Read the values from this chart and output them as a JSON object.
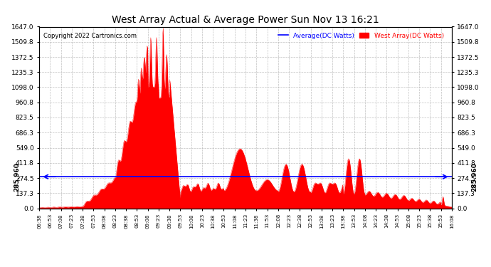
{
  "title": "West Array Actual & Average Power Sun Nov 13 16:21",
  "copyright": "Copyright 2022 Cartronics.com",
  "legend_avg": "Average(DC Watts)",
  "legend_west": "West Array(DC Watts)",
  "avg_value": 285.96,
  "y_max": 1647.0,
  "y_ticks": [
    0.0,
    137.3,
    274.5,
    411.8,
    549.0,
    686.3,
    823.5,
    960.8,
    1098.0,
    1235.3,
    1372.5,
    1509.8,
    1647.0
  ],
  "avg_label": "285.960",
  "background_color": "#ffffff",
  "fill_color": "#ff0000",
  "avg_line_color": "#0000ff",
  "grid_color": "#b0b0b0",
  "title_color": "#000000",
  "x_labels": [
    "06:38",
    "06:53",
    "07:08",
    "07:23",
    "07:38",
    "07:53",
    "08:08",
    "08:23",
    "08:38",
    "08:53",
    "09:08",
    "09:23",
    "09:38",
    "09:53",
    "10:08",
    "10:23",
    "10:38",
    "10:53",
    "11:08",
    "11:23",
    "11:38",
    "11:53",
    "12:08",
    "12:23",
    "12:38",
    "12:53",
    "13:08",
    "13:23",
    "13:38",
    "13:53",
    "14:08",
    "14:23",
    "14:38",
    "14:53",
    "15:08",
    "15:23",
    "15:38",
    "15:53",
    "16:08"
  ],
  "n_fine": 800,
  "t_total_min": 570,
  "peak_segments": [
    {
      "t0": 0,
      "t1": 30,
      "base": 5,
      "slope": 0.2,
      "bump_amp": 0,
      "bump_period": 1
    },
    {
      "t0": 30,
      "t1": 90,
      "base": 11,
      "slope": 0.8,
      "bump_amp": 5,
      "bump_period": 15
    },
    {
      "t0": 90,
      "t1": 150,
      "base": 59,
      "slope": 8.0,
      "bump_amp": 40,
      "bump_period": 8
    },
    {
      "t0": 150,
      "t1": 180,
      "base": 539,
      "slope": 18.0,
      "bump_amp": 120,
      "bump_period": 6
    },
    {
      "t0": 180,
      "t1": 195,
      "base": 1079,
      "slope": 0,
      "bump_amp": 400,
      "bump_period": 5
    },
    {
      "t0": 195,
      "t1": 210,
      "base": 1647,
      "slope": -80,
      "bump_amp": 0,
      "bump_period": 1
    },
    {
      "t0": 210,
      "t1": 225,
      "base": 447,
      "slope": -5,
      "bump_amp": 60,
      "bump_period": 8
    },
    {
      "t0": 225,
      "t1": 285,
      "base": 180,
      "slope": 0,
      "bump_amp": 50,
      "bump_period": 12
    },
    {
      "t0": 285,
      "t1": 330,
      "base": 150,
      "slope": 0,
      "bump_amp": 380,
      "bump_period": 22
    },
    {
      "t0": 330,
      "t1": 375,
      "base": 140,
      "slope": 0,
      "bump_amp": 220,
      "bump_period": 20
    },
    {
      "t0": 375,
      "t1": 420,
      "base": 130,
      "slope": 0,
      "bump_amp": 200,
      "bump_period": 22
    },
    {
      "t0": 420,
      "t1": 450,
      "base": 120,
      "slope": 0,
      "bump_amp": 300,
      "bump_period": 15
    },
    {
      "t0": 450,
      "t1": 480,
      "base": 110,
      "slope": 0,
      "bump_amp": 80,
      "bump_period": 10
    },
    {
      "t0": 480,
      "t1": 510,
      "base": 100,
      "slope": 0,
      "bump_amp": 50,
      "bump_period": 10
    },
    {
      "t0": 510,
      "t1": 555,
      "base": 60,
      "slope": -0.5,
      "bump_amp": 30,
      "bump_period": 10
    },
    {
      "t0": 555,
      "t1": 570,
      "base": 20,
      "slope": -0.8,
      "bump_amp": 80,
      "bump_period": 8
    }
  ]
}
